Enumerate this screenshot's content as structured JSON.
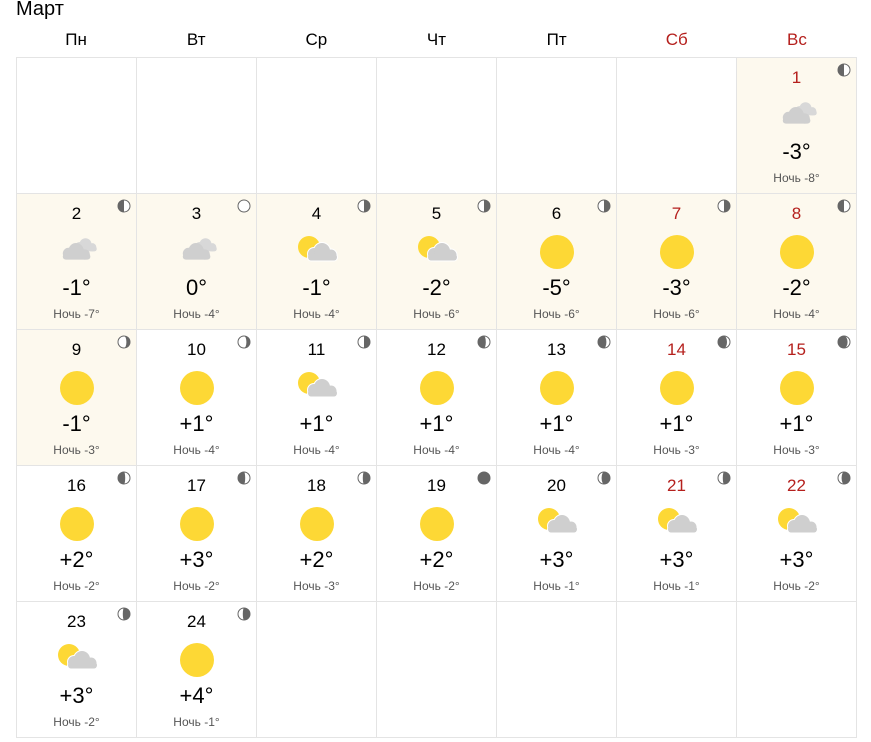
{
  "month_title": "Март",
  "weekdays": [
    {
      "label": "Пн",
      "weekend": false
    },
    {
      "label": "Вт",
      "weekend": false
    },
    {
      "label": "Ср",
      "weekend": false
    },
    {
      "label": "Чт",
      "weekend": false
    },
    {
      "label": "Пт",
      "weekend": false
    },
    {
      "label": "Сб",
      "weekend": true
    },
    {
      "label": "Вс",
      "weekend": true
    }
  ],
  "leading_empty_cells": 6,
  "night_label": "Ночь",
  "colors": {
    "weekend": "#b5201d",
    "highlight_bg": "#fdf9ee",
    "sun": "#fdd835",
    "cloud": "#cfcfcf",
    "moon_dark": "#666666"
  },
  "days": [
    {
      "date": "1",
      "temp": "-3°",
      "night": "-8°",
      "icon": "cloudy",
      "moon": {
        "dark": 0.5,
        "side": "left"
      },
      "weekend": true,
      "highlight": true
    },
    {
      "date": "2",
      "temp": "-1°",
      "night": "-7°",
      "icon": "cloudy",
      "moon": {
        "dark": 0.5,
        "side": "left"
      },
      "weekend": false,
      "highlight": true
    },
    {
      "date": "3",
      "temp": "0°",
      "night": "-4°",
      "icon": "cloudy",
      "moon": {
        "dark": 0,
        "side": "left"
      },
      "weekend": false,
      "highlight": true
    },
    {
      "date": "4",
      "temp": "-1°",
      "night": "-4°",
      "icon": "partly-cloudy",
      "moon": {
        "dark": 0.5,
        "side": "right"
      },
      "weekend": false,
      "highlight": true
    },
    {
      "date": "5",
      "temp": "-2°",
      "night": "-6°",
      "icon": "partly-cloudy",
      "moon": {
        "dark": 0.5,
        "side": "right"
      },
      "weekend": false,
      "highlight": true
    },
    {
      "date": "6",
      "temp": "-5°",
      "night": "-6°",
      "icon": "sunny",
      "moon": {
        "dark": 0.5,
        "side": "right"
      },
      "weekend": false,
      "highlight": true
    },
    {
      "date": "7",
      "temp": "-3°",
      "night": "-6°",
      "icon": "sunny",
      "moon": {
        "dark": 0.5,
        "side": "right"
      },
      "weekend": true,
      "highlight": true
    },
    {
      "date": "8",
      "temp": "-2°",
      "night": "-4°",
      "icon": "sunny",
      "moon": {
        "dark": 0.5,
        "side": "left"
      },
      "weekend": true,
      "highlight": true
    },
    {
      "date": "9",
      "temp": "-1°",
      "night": "-3°",
      "icon": "sunny",
      "moon": {
        "dark": 0.3,
        "side": "right"
      },
      "weekend": false,
      "highlight": true
    },
    {
      "date": "10",
      "temp": "+1°",
      "night": "-4°",
      "icon": "sunny",
      "moon": {
        "dark": 0.3,
        "side": "right"
      },
      "weekend": false,
      "highlight": false
    },
    {
      "date": "11",
      "temp": "+1°",
      "night": "-4°",
      "icon": "partly-cloudy",
      "moon": {
        "dark": 0.5,
        "side": "right"
      },
      "weekend": false,
      "highlight": false
    },
    {
      "date": "12",
      "temp": "+1°",
      "night": "-4°",
      "icon": "sunny",
      "moon": {
        "dark": 0.65,
        "side": "left"
      },
      "weekend": false,
      "highlight": false
    },
    {
      "date": "13",
      "temp": "+1°",
      "night": "-4°",
      "icon": "sunny",
      "moon": {
        "dark": 0.7,
        "side": "left"
      },
      "weekend": false,
      "highlight": false
    },
    {
      "date": "14",
      "temp": "+1°",
      "night": "-3°",
      "icon": "sunny",
      "moon": {
        "dark": 0.75,
        "side": "left"
      },
      "weekend": true,
      "highlight": false
    },
    {
      "date": "15",
      "temp": "+1°",
      "night": "-3°",
      "icon": "sunny",
      "moon": {
        "dark": 0.8,
        "side": "left"
      },
      "weekend": true,
      "highlight": false
    },
    {
      "date": "16",
      "temp": "+2°",
      "night": "-2°",
      "icon": "sunny",
      "moon": {
        "dark": 0.6,
        "side": "left"
      },
      "weekend": false,
      "highlight": false
    },
    {
      "date": "17",
      "temp": "+3°",
      "night": "-2°",
      "icon": "sunny",
      "moon": {
        "dark": 0.6,
        "side": "left"
      },
      "weekend": false,
      "highlight": false
    },
    {
      "date": "18",
      "temp": "+2°",
      "night": "-3°",
      "icon": "sunny",
      "moon": {
        "dark": 0.6,
        "side": "right"
      },
      "weekend": false,
      "highlight": false
    },
    {
      "date": "19",
      "temp": "+2°",
      "night": "-2°",
      "icon": "sunny",
      "moon": {
        "dark": 1,
        "side": "left"
      },
      "weekend": false,
      "highlight": false
    },
    {
      "date": "20",
      "temp": "+3°",
      "night": "-1°",
      "icon": "partly-cloudy",
      "moon": {
        "dark": 0.7,
        "side": "right"
      },
      "weekend": false,
      "highlight": false
    },
    {
      "date": "21",
      "temp": "+3°",
      "night": "-1°",
      "icon": "partly-cloudy",
      "moon": {
        "dark": 0.6,
        "side": "right"
      },
      "weekend": true,
      "highlight": false
    },
    {
      "date": "22",
      "temp": "+3°",
      "night": "-2°",
      "icon": "partly-cloudy",
      "moon": {
        "dark": 0.7,
        "side": "right"
      },
      "weekend": true,
      "highlight": false
    },
    {
      "date": "23",
      "temp": "+3°",
      "night": "-2°",
      "icon": "partly-cloudy",
      "moon": {
        "dark": 0.6,
        "side": "right"
      },
      "weekend": false,
      "highlight": false
    },
    {
      "date": "24",
      "temp": "+4°",
      "night": "-1°",
      "icon": "sunny",
      "moon": {
        "dark": 0.6,
        "side": "right"
      },
      "weekend": false,
      "highlight": false
    }
  ],
  "trailing_empty_cells": 5
}
